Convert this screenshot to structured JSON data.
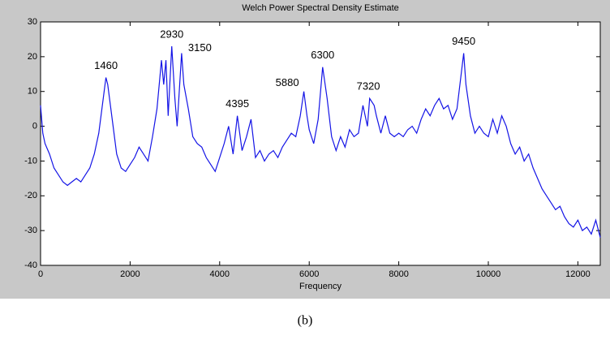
{
  "chart_data": {
    "type": "line",
    "title": "Welch Power Spectral Density Estimate",
    "xlabel": "Frequency",
    "caption": "(b)",
    "x": [
      0,
      50,
      100,
      200,
      300,
      400,
      500,
      600,
      700,
      800,
      900,
      1000,
      1100,
      1200,
      1300,
      1400,
      1460,
      1500,
      1600,
      1700,
      1800,
      1900,
      2000,
      2100,
      2200,
      2300,
      2400,
      2500,
      2600,
      2700,
      2750,
      2800,
      2850,
      2930,
      3000,
      3050,
      3150,
      3200,
      3300,
      3400,
      3500,
      3600,
      3700,
      3800,
      3900,
      4000,
      4100,
      4200,
      4300,
      4395,
      4500,
      4600,
      4700,
      4800,
      4900,
      5000,
      5100,
      5200,
      5300,
      5400,
      5500,
      5600,
      5700,
      5800,
      5880,
      5950,
      6000,
      6100,
      6200,
      6300,
      6400,
      6500,
      6600,
      6700,
      6800,
      6900,
      7000,
      7100,
      7200,
      7300,
      7350,
      7450,
      7500,
      7600,
      7700,
      7800,
      7900,
      8000,
      8100,
      8200,
      8300,
      8400,
      8500,
      8600,
      8700,
      8800,
      8900,
      9000,
      9100,
      9200,
      9300,
      9450,
      9500,
      9600,
      9700,
      9800,
      9900,
      10000,
      10100,
      10200,
      10300,
      10400,
      10500,
      10600,
      10700,
      10800,
      10900,
      11000,
      11100,
      11200,
      11300,
      11400,
      11500,
      11600,
      11700,
      11800,
      11900,
      12000,
      12100,
      12200,
      12300,
      12400,
      12500
    ],
    "series": [
      {
        "name": "PSD",
        "color": "#1414e6",
        "values": [
          6,
          -2,
          -5,
          -8,
          -12,
          -14,
          -16,
          -17,
          -16,
          -15,
          -16,
          -14,
          -12,
          -8,
          -2,
          8,
          14,
          12,
          2,
          -8,
          -12,
          -13,
          -11,
          -9,
          -6,
          -8,
          -10,
          -3,
          5,
          19,
          12,
          19,
          3,
          23,
          8,
          0,
          21,
          12,
          5,
          -3,
          -5,
          -6,
          -9,
          -11,
          -13,
          -9,
          -5,
          0,
          -8,
          3,
          -7,
          -3,
          2,
          -9,
          -7,
          -10,
          -8,
          -7,
          -9,
          -6,
          -4,
          -2,
          -3,
          3,
          10,
          3,
          -1,
          -5,
          2,
          17,
          8,
          -3,
          -7,
          -3,
          -6,
          -1,
          -3,
          -2,
          6,
          0,
          8,
          6,
          3,
          -2,
          3,
          -2,
          -3,
          -2,
          -3,
          -1,
          0,
          -2,
          2,
          5,
          3,
          6,
          8,
          5,
          6,
          2,
          5,
          21,
          12,
          3,
          -2,
          0,
          -2,
          -3,
          2,
          -2,
          3,
          0,
          -5,
          -8,
          -6,
          -10,
          -8,
          -12,
          -15,
          -18,
          -20,
          -22,
          -24,
          -23,
          -26,
          -28,
          -29,
          -27,
          -30,
          -29,
          -31,
          -27,
          -32
        ]
      }
    ],
    "annotations": [
      {
        "text": "1460",
        "x": 1460,
        "y": 14,
        "side": "top"
      },
      {
        "text": "2930",
        "x": 2930,
        "y": 23,
        "side": "top"
      },
      {
        "text": "3150",
        "x": 3150,
        "y": 21,
        "side": "right"
      },
      {
        "text": "4395",
        "x": 4395,
        "y": 3,
        "side": "top"
      },
      {
        "text": "5880",
        "x": 5880,
        "y": 10,
        "side": "left"
      },
      {
        "text": "6300",
        "x": 6300,
        "y": 17,
        "side": "top"
      },
      {
        "text": "7320",
        "x": 7320,
        "y": 8,
        "side": "top"
      },
      {
        "text": "9450",
        "x": 9450,
        "y": 21,
        "side": "top"
      }
    ],
    "xlim": [
      0,
      12500
    ],
    "ylim": [
      -40,
      30
    ],
    "xticks": [
      0,
      2000,
      4000,
      6000,
      8000,
      10000,
      12000
    ],
    "yticks": [
      -40,
      -30,
      -20,
      -10,
      0,
      10,
      20,
      30
    ],
    "grid": false
  }
}
